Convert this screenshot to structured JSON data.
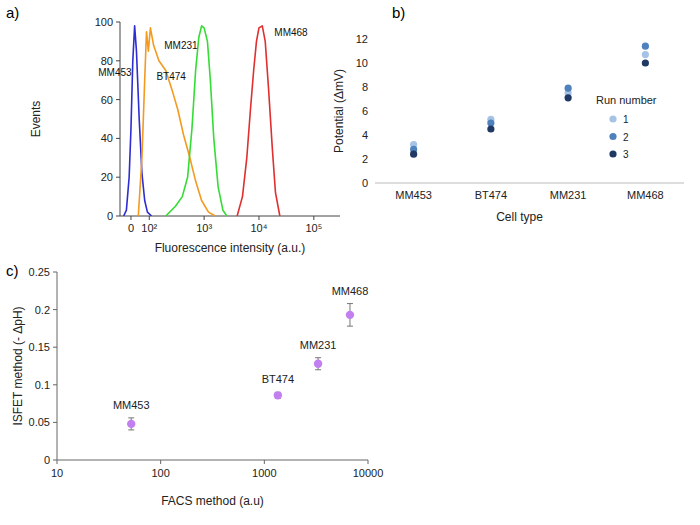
{
  "chart_data": [
    {
      "type": "line",
      "title": "a)",
      "x_label": "Fluorescence intensity (a.u.)",
      "y_label": "Events",
      "log": "x",
      "xlim": [
        -60,
        300000
      ],
      "xticks": [
        0,
        {
          "value": 100,
          "label": "10²"
        },
        {
          "value": 1000,
          "label": "10³"
        },
        {
          "value": 10000,
          "label": "10⁴"
        },
        {
          "value": 100000,
          "label": "10⁵"
        }
      ],
      "ylim": [
        0,
        100
      ],
      "yticks": [
        0,
        20,
        40,
        60,
        80,
        100
      ],
      "grid": false,
      "series": [
        {
          "name": "MM453",
          "color": "#2d2dd2",
          "x": [
            -40,
            -25,
            -10,
            0,
            10,
            20,
            30,
            45,
            60,
            75,
            90,
            110
          ],
          "values": [
            0,
            3,
            20,
            45,
            80,
            98,
            85,
            50,
            22,
            8,
            2,
            0
          ]
        },
        {
          "name": "BT474",
          "color": "#f39a1f",
          "x": [
            40,
            60,
            75,
            85,
            95,
            105,
            120,
            150,
            200,
            260,
            330,
            420,
            550,
            700,
            900,
            1200,
            1600
          ],
          "values": [
            0,
            30,
            70,
            95,
            85,
            97,
            88,
            80,
            75,
            65,
            55,
            42,
            30,
            18,
            8,
            2,
            0
          ]
        },
        {
          "name": "MM231",
          "color": "#35dc35",
          "x": [
            200,
            300,
            400,
            500,
            600,
            700,
            800,
            900,
            1000,
            1150,
            1300,
            1500,
            1800,
            2200,
            2600
          ],
          "values": [
            0,
            5,
            10,
            20,
            45,
            75,
            92,
            98,
            97,
            90,
            70,
            40,
            15,
            3,
            0
          ]
        },
        {
          "name": "MM468",
          "color": "#e02f2f",
          "x": [
            4000,
            5000,
            6000,
            7000,
            8000,
            9000,
            10000,
            11500,
            13000,
            15000,
            17500,
            20000,
            24000
          ],
          "values": [
            0,
            10,
            30,
            55,
            75,
            90,
            97,
            98,
            90,
            65,
            35,
            12,
            0
          ]
        }
      ]
    },
    {
      "type": "scatter",
      "title": "b)",
      "x_label": "Cell type",
      "y_label": "Potential (ΔmV)",
      "categories": [
        "MM453",
        "BT474",
        "MM231",
        "MM468"
      ],
      "ylim": [
        0,
        12
      ],
      "yticks": [
        0,
        2,
        4,
        6,
        8,
        10,
        12
      ],
      "grid": false,
      "legend": "right",
      "legend_title": "Run number",
      "marker": "circle",
      "series": [
        {
          "name": "1",
          "color": "#a6c3e6",
          "values": [
            3.2,
            5.3,
            7.5,
            10.7
          ]
        },
        {
          "name": "2",
          "color": "#4f81bd",
          "values": [
            2.8,
            5.0,
            7.9,
            11.4
          ]
        },
        {
          "name": "3",
          "color": "#1f3864",
          "values": [
            2.4,
            4.5,
            7.1,
            10.0
          ]
        }
      ]
    },
    {
      "type": "scatter",
      "title": "c)",
      "x_label": "FACS method (a.u)",
      "y_label": "ISFET method (- ΔpH)",
      "log": "x",
      "xlim": [
        10,
        10000
      ],
      "xticks": [
        10,
        100,
        1000,
        10000
      ],
      "ylim": [
        0,
        0.25
      ],
      "yticks": [
        0,
        0.05,
        0.1,
        0.15,
        0.2,
        0.25
      ],
      "grid": false,
      "marker": "circle",
      "color": "#c27ff0",
      "x": [
        52,
        1350,
        3300,
        6700
      ],
      "values": [
        0.048,
        0.086,
        0.128,
        0.193
      ],
      "errors": [
        0.008,
        0.004,
        0.008,
        0.015
      ],
      "labels": [
        "MM453",
        "BT474",
        "MM231",
        "MM468"
      ]
    }
  ]
}
